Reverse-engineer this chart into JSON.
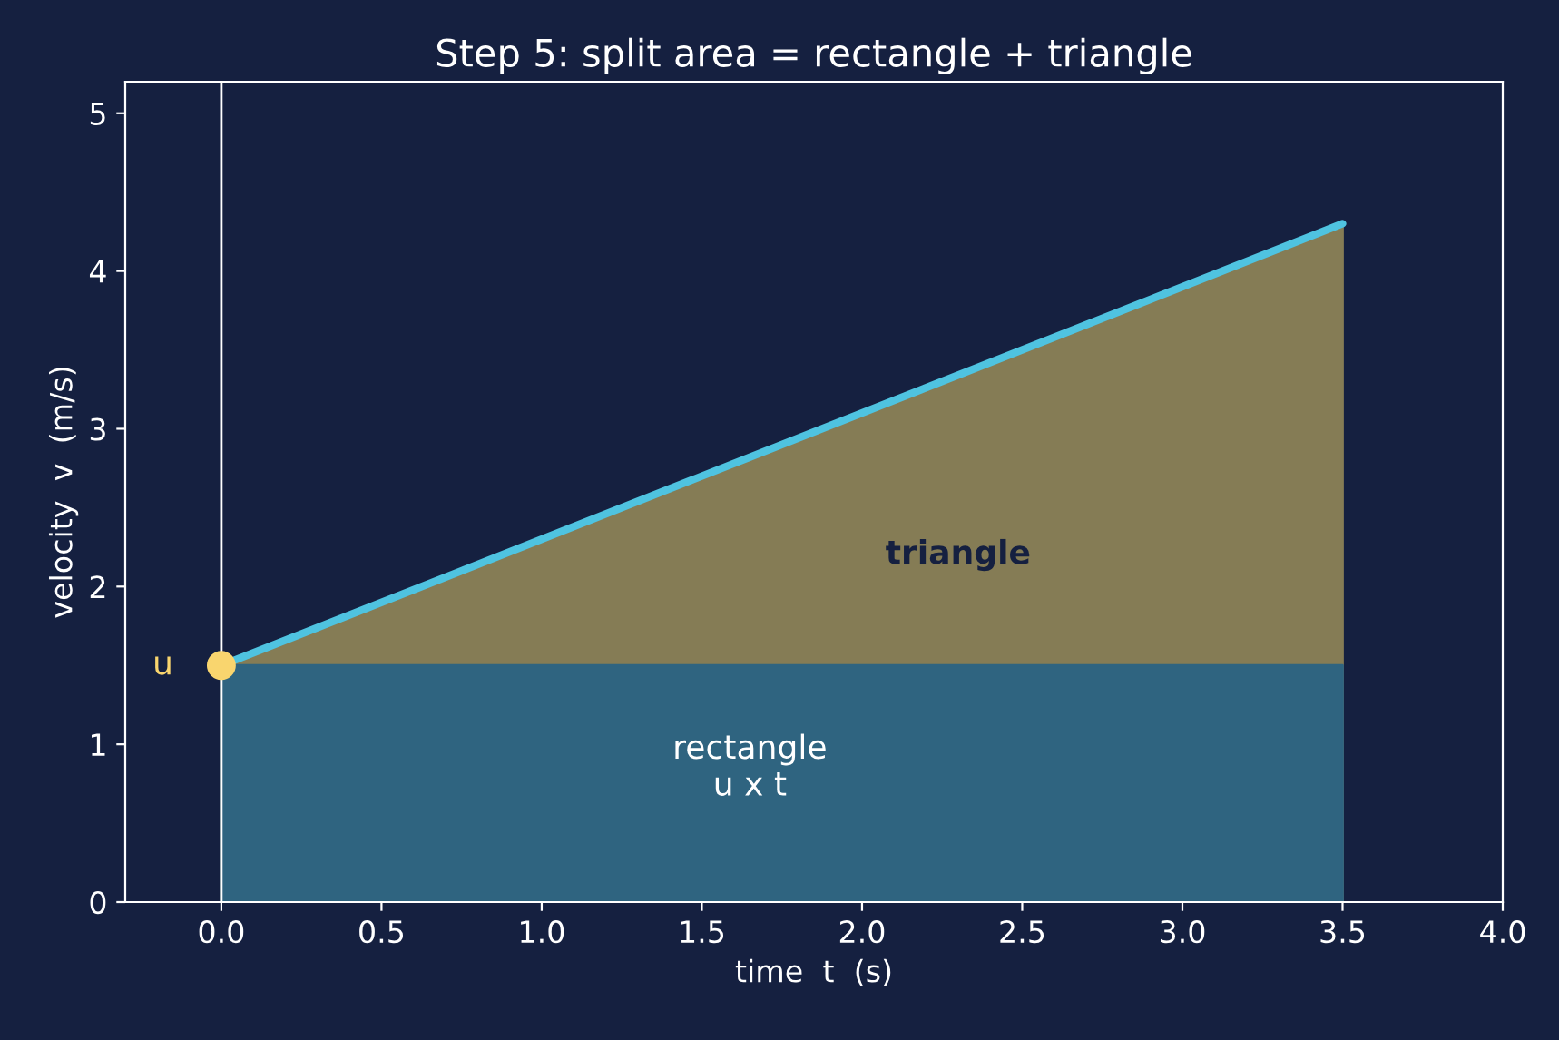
{
  "chart_data": {
    "type": "line",
    "title": "Step 5: split area = rectangle + triangle",
    "xlabel": "time  t  (s)",
    "ylabel": "velocity  v  (m/s)",
    "series": [
      {
        "type": "area",
        "values": [
          1.5,
          4.3
        ],
        "color": "#857c55"
      },
      {
        "type": "area",
        "values": [
          1.5,
          1.5
        ],
        "color": "#2f6480"
      },
      {
        "values": [
          1.5,
          4.3
        ],
        "color": "#4fc3e0"
      },
      {
        "type": "scatter",
        "x": [
          0
        ],
        "values": [
          1.5
        ],
        "color": "#f9d56e",
        "marker": "circle"
      }
    ],
    "x": [
      0,
      3.5
    ],
    "annotations": [
      {
        "text": "u",
        "x": 0,
        "y": 1.5
      },
      "triangle",
      "rectangle\nu x t"
    ],
    "ref_lines": [
      {
        "axis": "x",
        "value": 0,
        "color": "#ffffff"
      }
    ],
    "xlim": [
      -0.3,
      4.0
    ],
    "xticks": [
      {
        "value": 0,
        "label": "0.0"
      },
      0.5,
      {
        "value": 1,
        "label": "1.0"
      },
      1.5,
      {
        "value": 2,
        "label": "2.0"
      },
      2.5,
      {
        "value": 3,
        "label": "3.0"
      },
      3.5,
      {
        "value": 4,
        "label": "4.0"
      }
    ],
    "ylim": [
      0,
      5.2
    ],
    "yticks": [
      0,
      1,
      2,
      3,
      4,
      5
    ],
    "grid": false
  }
}
